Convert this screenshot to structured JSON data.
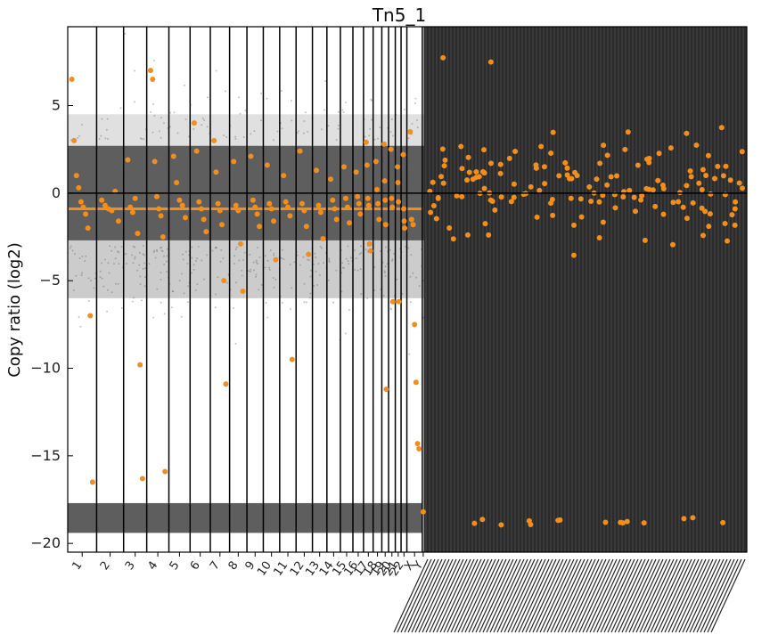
{
  "chart_data": {
    "type": "scatter",
    "title": "Tn5_1",
    "xlabel": "",
    "ylabel": "Copy ratio (log2)",
    "ylim": [
      -20.5,
      9.5
    ],
    "yticks": [
      5,
      0,
      -5,
      -10,
      -15,
      -20
    ],
    "ytick_labels": [
      "5",
      "0",
      "−5",
      "−10",
      "−15",
      "−20"
    ],
    "grid": false,
    "colors": {
      "bins": "#555555",
      "segments": "#f28e1c",
      "lines": "#000000",
      "zero_line": "#000000"
    },
    "categories": [
      "1",
      "2",
      "3",
      "4",
      "5",
      "6",
      "7",
      "8",
      "9",
      "10",
      "11",
      "12",
      "13",
      "14",
      "15",
      "16",
      "17",
      "18",
      "19",
      "20",
      "21",
      "22",
      "X",
      "Y"
    ],
    "segments": [
      {
        "chrom": "1",
        "y": 6.5
      },
      {
        "chrom": "1",
        "y": 3.0
      },
      {
        "chrom": "1",
        "y": 1.0
      },
      {
        "chrom": "1",
        "y": 0.3
      },
      {
        "chrom": "1",
        "y": -0.5
      },
      {
        "chrom": "1",
        "y": -0.8
      },
      {
        "chrom": "1",
        "y": -1.2
      },
      {
        "chrom": "1",
        "y": -2.0
      },
      {
        "chrom": "1",
        "y": -7.0
      },
      {
        "chrom": "1",
        "y": -16.5
      },
      {
        "chrom": "2",
        "y": -0.4
      },
      {
        "chrom": "2",
        "y": -0.7
      },
      {
        "chrom": "2",
        "y": -0.9
      },
      {
        "chrom": "2",
        "y": -1.0
      },
      {
        "chrom": "2",
        "y": 0.1
      },
      {
        "chrom": "2",
        "y": -1.6
      },
      {
        "chrom": "3",
        "y": 1.9
      },
      {
        "chrom": "3",
        "y": -0.8
      },
      {
        "chrom": "3",
        "y": -1.1
      },
      {
        "chrom": "3",
        "y": -0.3
      },
      {
        "chrom": "3",
        "y": -2.3
      },
      {
        "chrom": "3",
        "y": -9.8
      },
      {
        "chrom": "3",
        "y": -16.3
      },
      {
        "chrom": "4",
        "y": 7.0
      },
      {
        "chrom": "4",
        "y": 6.5
      },
      {
        "chrom": "4",
        "y": 1.8
      },
      {
        "chrom": "4",
        "y": -0.2
      },
      {
        "chrom": "4",
        "y": -0.9
      },
      {
        "chrom": "4",
        "y": -1.3
      },
      {
        "chrom": "4",
        "y": -2.5
      },
      {
        "chrom": "4",
        "y": -15.9
      },
      {
        "chrom": "5",
        "y": 2.1
      },
      {
        "chrom": "5",
        "y": 0.6
      },
      {
        "chrom": "5",
        "y": -0.4
      },
      {
        "chrom": "5",
        "y": -0.7
      },
      {
        "chrom": "5",
        "y": -1.4
      },
      {
        "chrom": "6",
        "y": 4.0
      },
      {
        "chrom": "6",
        "y": 2.4
      },
      {
        "chrom": "6",
        "y": -0.5
      },
      {
        "chrom": "6",
        "y": -0.9
      },
      {
        "chrom": "6",
        "y": -1.5
      },
      {
        "chrom": "6",
        "y": -2.2
      },
      {
        "chrom": "7",
        "y": 3.0
      },
      {
        "chrom": "7",
        "y": 1.2
      },
      {
        "chrom": "7",
        "y": -0.6
      },
      {
        "chrom": "7",
        "y": -1.0
      },
      {
        "chrom": "7",
        "y": -1.8
      },
      {
        "chrom": "7",
        "y": -5.0
      },
      {
        "chrom": "7",
        "y": -10.9
      },
      {
        "chrom": "8",
        "y": 1.8
      },
      {
        "chrom": "8",
        "y": -0.7
      },
      {
        "chrom": "8",
        "y": -1.0
      },
      {
        "chrom": "8",
        "y": -2.9
      },
      {
        "chrom": "8",
        "y": -5.6
      },
      {
        "chrom": "9",
        "y": 2.1
      },
      {
        "chrom": "9",
        "y": -0.4
      },
      {
        "chrom": "9",
        "y": -0.8
      },
      {
        "chrom": "9",
        "y": -1.2
      },
      {
        "chrom": "9",
        "y": -1.9
      },
      {
        "chrom": "10",
        "y": 1.6
      },
      {
        "chrom": "10",
        "y": -0.6
      },
      {
        "chrom": "10",
        "y": -0.9
      },
      {
        "chrom": "10",
        "y": -1.6
      },
      {
        "chrom": "10",
        "y": -3.8
      },
      {
        "chrom": "11",
        "y": 1.0
      },
      {
        "chrom": "11",
        "y": -0.5
      },
      {
        "chrom": "11",
        "y": -0.8
      },
      {
        "chrom": "11",
        "y": -1.3
      },
      {
        "chrom": "11",
        "y": -9.5
      },
      {
        "chrom": "12",
        "y": 2.4
      },
      {
        "chrom": "12",
        "y": -0.6
      },
      {
        "chrom": "12",
        "y": -1.0
      },
      {
        "chrom": "12",
        "y": -1.9
      },
      {
        "chrom": "12",
        "y": -3.5
      },
      {
        "chrom": "13",
        "y": 1.3
      },
      {
        "chrom": "13",
        "y": -0.7
      },
      {
        "chrom": "13",
        "y": -1.1
      },
      {
        "chrom": "13",
        "y": -2.6
      },
      {
        "chrom": "14",
        "y": 0.8
      },
      {
        "chrom": "14",
        "y": -0.4
      },
      {
        "chrom": "14",
        "y": -0.9
      },
      {
        "chrom": "14",
        "y": -1.5
      },
      {
        "chrom": "15",
        "y": 1.5
      },
      {
        "chrom": "15",
        "y": -0.3
      },
      {
        "chrom": "15",
        "y": -0.8
      },
      {
        "chrom": "15",
        "y": -1.7
      },
      {
        "chrom": "16",
        "y": 1.2
      },
      {
        "chrom": "16",
        "y": -0.2
      },
      {
        "chrom": "16",
        "y": -0.6
      },
      {
        "chrom": "16",
        "y": -1.2
      },
      {
        "chrom": "17",
        "y": 2.9
      },
      {
        "chrom": "17",
        "y": 1.6
      },
      {
        "chrom": "17",
        "y": -0.3
      },
      {
        "chrom": "17",
        "y": -0.7
      },
      {
        "chrom": "17",
        "y": -2.9
      },
      {
        "chrom": "17",
        "y": -3.3
      },
      {
        "chrom": "18",
        "y": 1.8
      },
      {
        "chrom": "18",
        "y": 0.2
      },
      {
        "chrom": "18",
        "y": -0.6
      },
      {
        "chrom": "18",
        "y": -1.5
      },
      {
        "chrom": "19",
        "y": 2.8
      },
      {
        "chrom": "19",
        "y": 0.7
      },
      {
        "chrom": "19",
        "y": -0.4
      },
      {
        "chrom": "19",
        "y": -1.8
      },
      {
        "chrom": "19",
        "y": -11.2
      },
      {
        "chrom": "20",
        "y": 2.5
      },
      {
        "chrom": "20",
        "y": -0.3
      },
      {
        "chrom": "20",
        "y": -0.8
      },
      {
        "chrom": "20",
        "y": -6.2
      },
      {
        "chrom": "21",
        "y": 1.5
      },
      {
        "chrom": "21",
        "y": 0.6
      },
      {
        "chrom": "21",
        "y": -0.5
      },
      {
        "chrom": "21",
        "y": -6.2
      },
      {
        "chrom": "22",
        "y": 2.2
      },
      {
        "chrom": "22",
        "y": -0.9
      },
      {
        "chrom": "22",
        "y": -1.6
      },
      {
        "chrom": "22",
        "y": -2.0
      },
      {
        "chrom": "X",
        "y": 3.5
      },
      {
        "chrom": "X",
        "y": -1.5
      },
      {
        "chrom": "X",
        "y": -1.8
      },
      {
        "chrom": "X",
        "y": -7.5
      },
      {
        "chrom": "X",
        "y": -10.8
      },
      {
        "chrom": "X",
        "y": -14.3
      },
      {
        "chrom": "X",
        "y": -14.6
      },
      {
        "chrom": "Y",
        "y": -18.2
      }
    ]
  }
}
